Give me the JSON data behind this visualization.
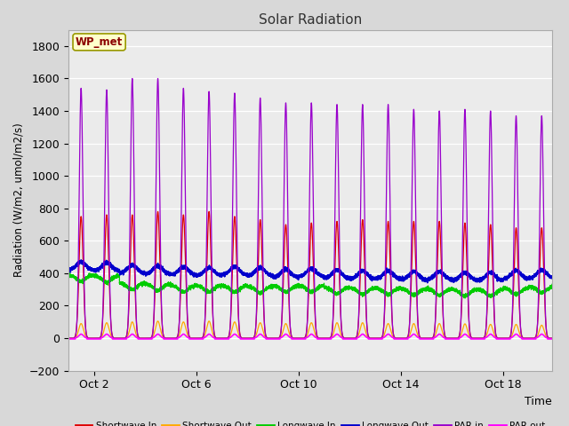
{
  "title": "Solar Radiation",
  "ylabel": "Radiation (W/m2, umol/m2/s)",
  "xlabel": "Time",
  "ylim": [
    -200,
    1900
  ],
  "yticks": [
    -200,
    0,
    200,
    400,
    600,
    800,
    1000,
    1200,
    1400,
    1600,
    1800
  ],
  "annotation_text": "WP_met",
  "fig_bg_color": "#d8d8d8",
  "plot_bg_color": "#ebebeb",
  "n_days": 19,
  "points_per_day": 480,
  "series": {
    "shortwave_in": {
      "color": "#dd0000",
      "label": "Shortwave In"
    },
    "shortwave_out": {
      "color": "#ffaa00",
      "label": "Shortwave Out"
    },
    "longwave_in": {
      "color": "#00cc00",
      "label": "Longwave In"
    },
    "longwave_out": {
      "color": "#0000cc",
      "label": "Longwave Out"
    },
    "par_in": {
      "color": "#9900cc",
      "label": "PAR in"
    },
    "par_out": {
      "color": "#ff00ff",
      "label": "PAR out"
    }
  },
  "xtick_positions": [
    2,
    6,
    10,
    14,
    18
  ],
  "xtick_labels": [
    "Oct 2",
    "Oct 6",
    "Oct 10",
    "Oct 14",
    "Oct 18"
  ],
  "xlim": [
    1.0,
    19.9
  ]
}
